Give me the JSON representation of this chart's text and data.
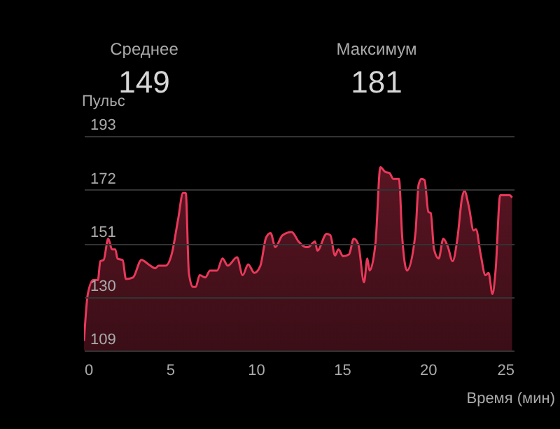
{
  "chart_data": {
    "type": "area",
    "annotations": [
      "Среднее",
      "149",
      "Максимум",
      "181"
    ],
    "xlabel": "Время (мин)",
    "ylabel": "Пульс",
    "x": [
      0,
      0.22,
      0.54,
      0.81,
      0.95,
      1.14,
      1.41,
      1.63,
      1.82,
      1.95,
      2.25,
      2.44,
      2.85,
      3.34,
      3.8,
      4.15,
      4.34,
      4.75,
      5.1,
      5.48,
      5.76,
      5.92,
      6.1,
      6.33,
      6.5,
      6.73,
      7.06,
      7.33,
      7.74,
      8.06,
      8.36,
      8.9,
      9.23,
      9.55,
      9.91,
      10.26,
      10.59,
      10.85,
      11.13,
      11.54,
      12.08,
      12.48,
      12.89,
      13.03,
      13.44,
      13.57,
      14.12,
      14.33,
      14.6,
      14.8,
      15.07,
      15.42,
      15.69,
      15.96,
      16.29,
      16.48,
      16.61,
      16.96,
      17.24,
      17.51,
      17.77,
      17.99,
      18.32,
      18.51,
      18.79,
      19.28,
      19.46,
      19.63,
      19.81,
      20.03,
      20.17,
      20.36,
      20.63,
      20.9,
      21.17,
      21.44,
      21.71,
      21.99,
      22.12,
      22.39,
      22.66,
      22.8,
      23.07,
      23.35,
      23.53,
      23.76,
      23.94,
      24.21,
      24.37,
      24.76,
      24.9
    ],
    "series": [
      {
        "color": "#e8385a",
        "values": [
          112.7,
          131,
          136.6,
          136.6,
          144,
          144.4,
          152.8,
          148.6,
          148.6,
          145,
          144.4,
          137,
          137.6,
          144.5,
          142.5,
          141.2,
          142.2,
          142.2,
          146.7,
          160.6,
          170.7,
          170.7,
          139.4,
          133.9,
          133.9,
          138.5,
          137.6,
          140.3,
          140.3,
          145,
          142.2,
          145.5,
          138.5,
          142.7,
          139.4,
          142.2,
          153.2,
          155,
          149.5,
          154.1,
          155.4,
          151.7,
          149.5,
          149.5,
          151.7,
          148.1,
          154.7,
          154.1,
          146.2,
          148.6,
          145.9,
          146.7,
          152.8,
          150.4,
          135.7,
          145,
          140.3,
          151.4,
          180.8,
          179,
          178.5,
          176.2,
          176.2,
          153.2,
          140.3,
          155,
          173.8,
          176.2,
          175.7,
          163.3,
          162.8,
          148.6,
          145,
          152.8,
          149.5,
          144,
          152.3,
          168.8,
          171.6,
          165.2,
          156,
          156.5,
          146.7,
          138.5,
          139.4,
          131.1,
          140.3,
          169.8,
          169.8,
          169.8,
          168.9
        ]
      }
    ],
    "xlim": [
      0,
      25
    ],
    "xticks": [
      0,
      5,
      10,
      15,
      20,
      25
    ],
    "ylim": [
      109,
      193
    ],
    "yticks": [
      109,
      130,
      151,
      172,
      193
    ],
    "grid": "y"
  }
}
